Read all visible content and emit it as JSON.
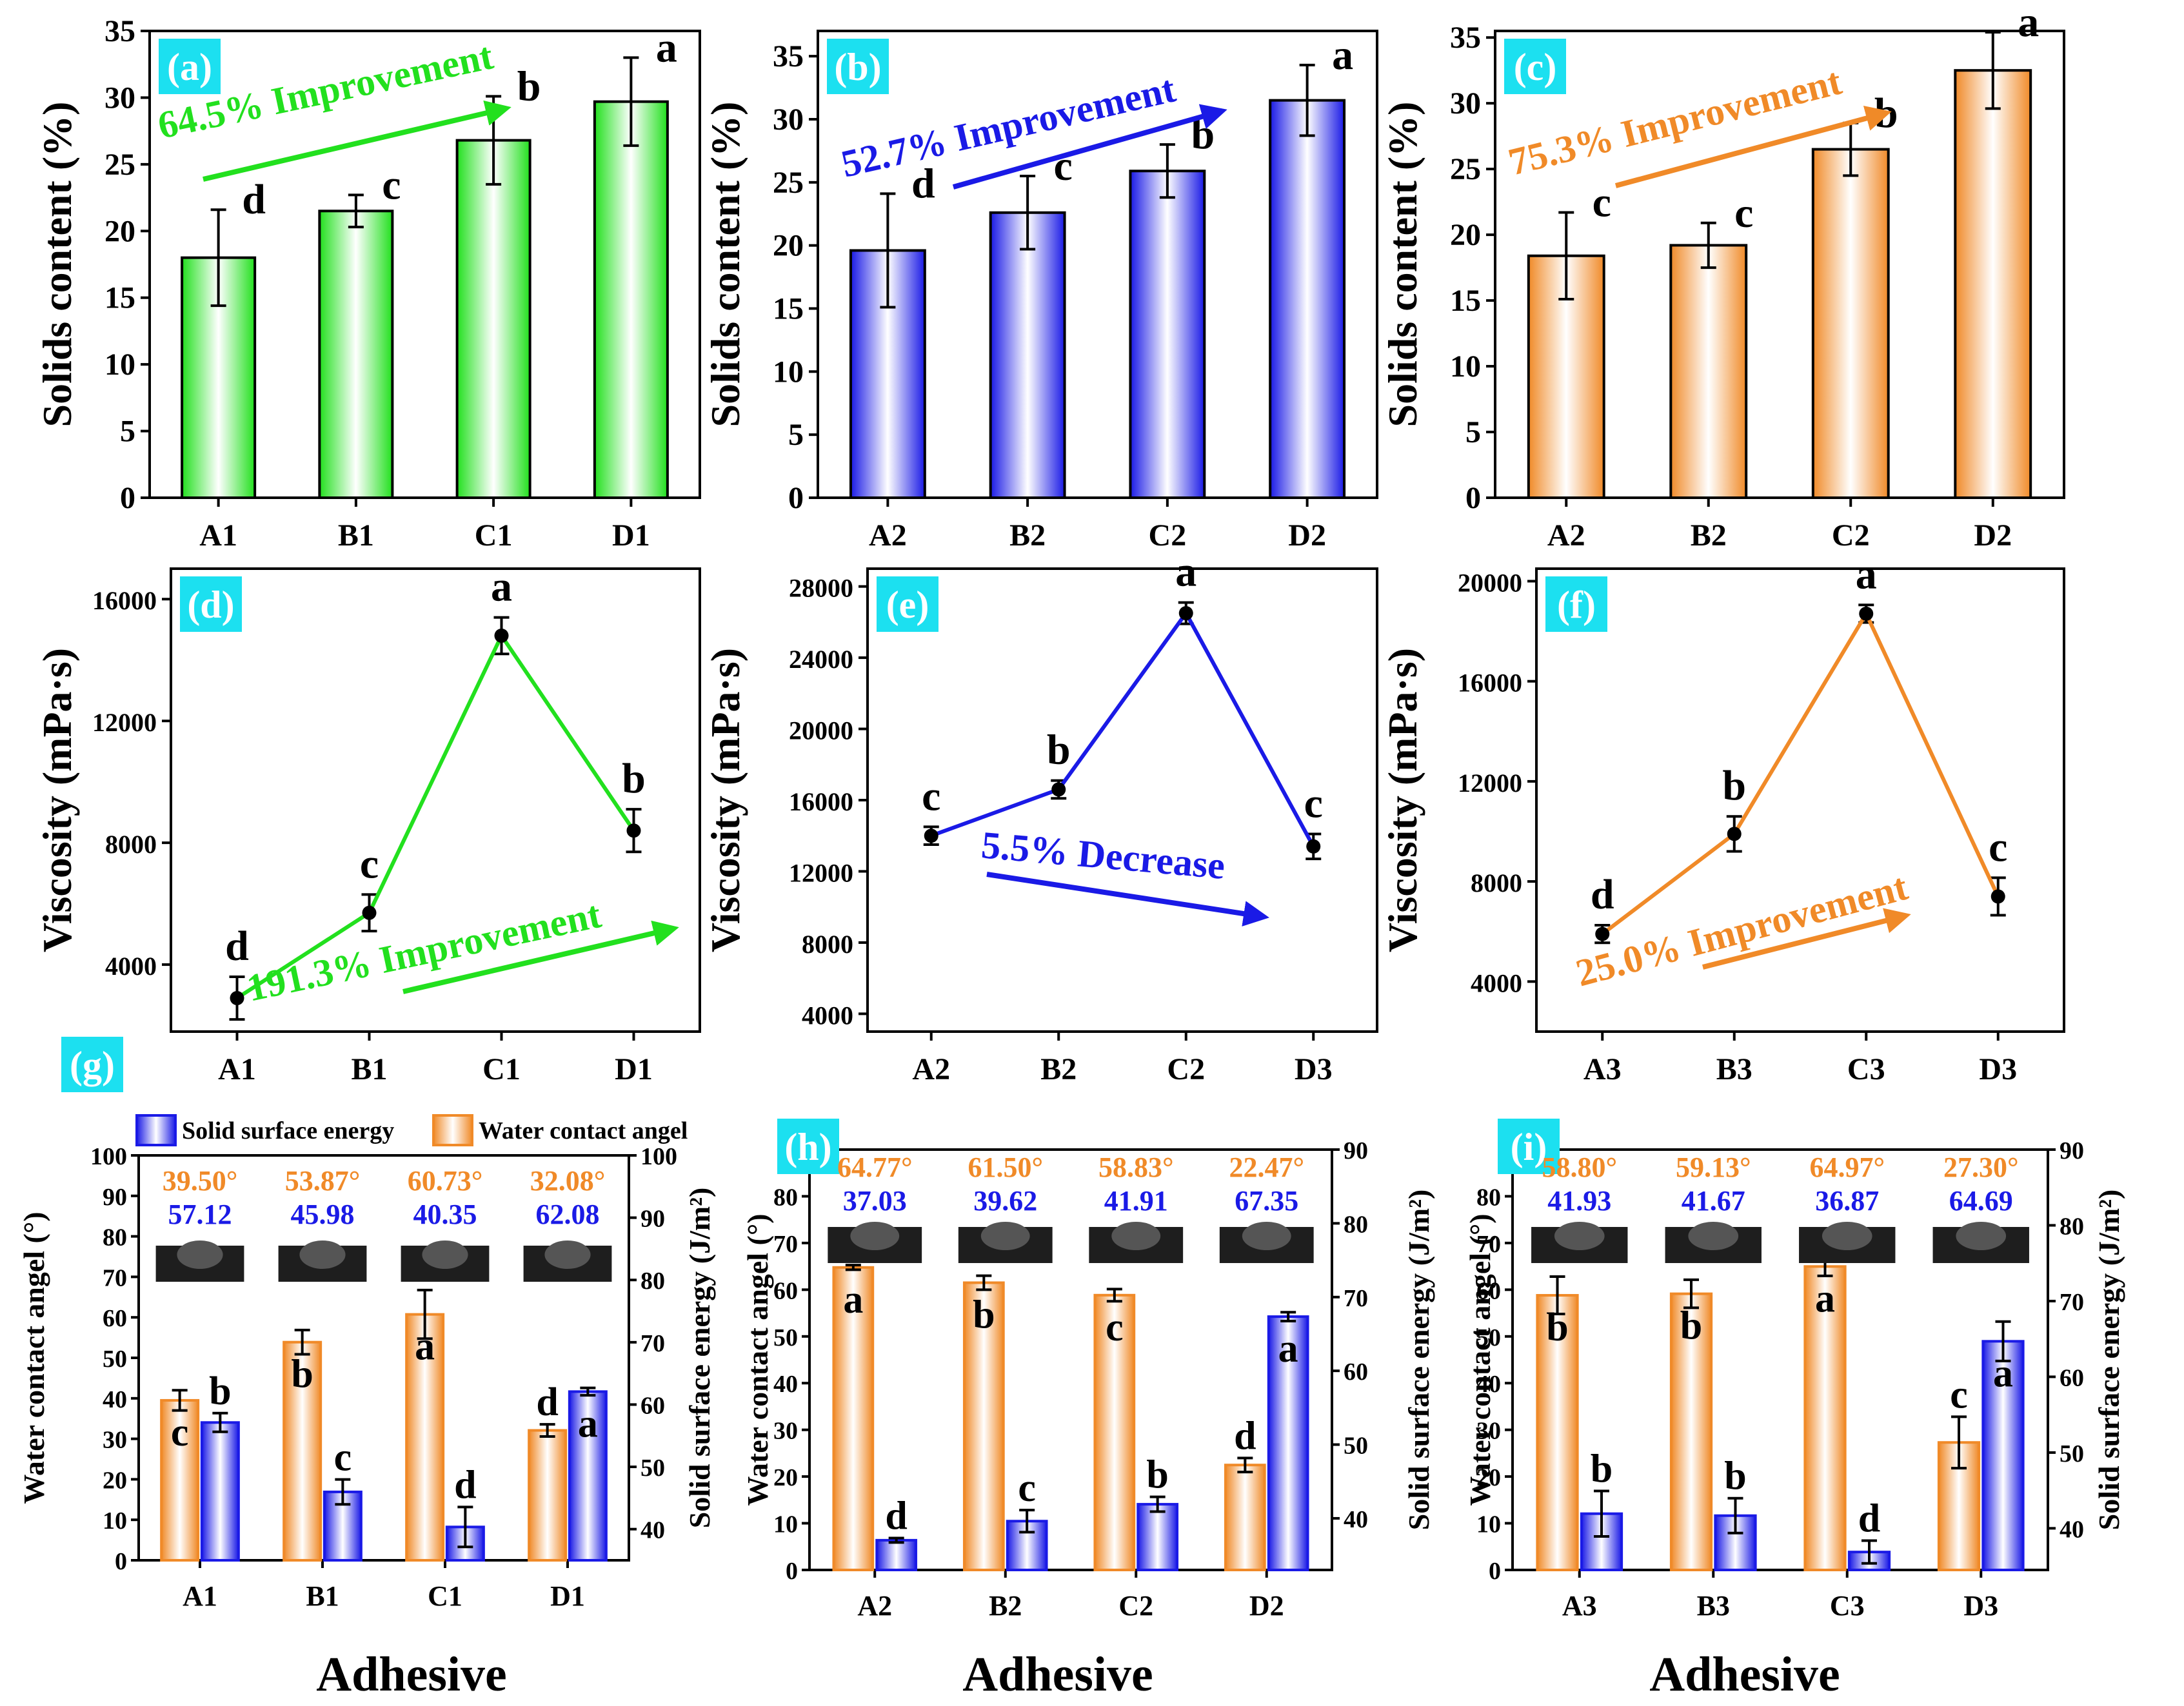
{
  "figure": {
    "adhesive_label": "Adhesive",
    "legend": {
      "solid_surface_energy": "Solid surface energy",
      "water_contact_angel": "Water contact angel"
    }
  },
  "colors": {
    "green": "#22e01e",
    "blue": "#1a1ae6",
    "orange": "#f08a28",
    "panel_label_bg": "#1ce0f0",
    "axis": "#000000"
  },
  "chart_data": [
    {
      "panel": "(a)",
      "type": "bar",
      "color": "green",
      "categories": [
        "A1",
        "B1",
        "C1",
        "D1"
      ],
      "values": [
        18.0,
        21.5,
        26.8,
        29.7
      ],
      "errors": [
        3.6,
        1.2,
        3.3,
        3.3
      ],
      "letters": [
        "d",
        "c",
        "b",
        "a"
      ],
      "ylabel": "Solids content (%)",
      "ylim": [
        0,
        35
      ],
      "yticks": [
        "0",
        "5",
        "10",
        "15",
        "20",
        "25",
        "30",
        "35"
      ],
      "annotation": "64.5% Improvement"
    },
    {
      "panel": "(b)",
      "type": "bar",
      "color": "blue",
      "categories": [
        "A2",
        "B2",
        "C2",
        "D2"
      ],
      "values": [
        19.6,
        22.6,
        25.9,
        31.5
      ],
      "errors": [
        4.5,
        2.9,
        2.1,
        2.8
      ],
      "letters": [
        "d",
        "c",
        "b",
        "a"
      ],
      "ylabel": "Solids content (%)",
      "ylim": [
        0,
        37
      ],
      "yticks": [
        "0",
        "5",
        "10",
        "15",
        "20",
        "25",
        "30",
        "35"
      ],
      "annotation": "52.7% Improvement"
    },
    {
      "panel": "(c)",
      "type": "bar",
      "color": "orange",
      "categories": [
        "A2",
        "B2",
        "C2",
        "D2"
      ],
      "values": [
        18.4,
        19.2,
        26.5,
        32.5
      ],
      "errors": [
        3.3,
        1.7,
        2.0,
        2.9
      ],
      "letters": [
        "c",
        "c",
        "b",
        "a"
      ],
      "ylabel": "Solids content (%)",
      "ylim": [
        0,
        35.5
      ],
      "yticks": [
        "0",
        "5",
        "10",
        "15",
        "20",
        "25",
        "30",
        "35"
      ],
      "annotation": "75.3% Improvement"
    },
    {
      "panel": "(d)",
      "type": "line",
      "color": "green",
      "categories": [
        "A1",
        "B1",
        "C1",
        "D1"
      ],
      "values": [
        2900,
        5700,
        14800,
        8400
      ],
      "errors": [
        700,
        600,
        600,
        700
      ],
      "letters": [
        "d",
        "c",
        "a",
        "b"
      ],
      "ylabel": "Viscosity (mPa·s)",
      "ylim": [
        1800,
        17000
      ],
      "yticks": [
        "4000",
        "8000",
        "12000",
        "16000"
      ],
      "annotation": "191.3% Improvement"
    },
    {
      "panel": "(e)",
      "type": "line",
      "color": "blue",
      "categories": [
        "A2",
        "B2",
        "C2",
        "D3"
      ],
      "values": [
        14000,
        16600,
        26500,
        13400
      ],
      "errors": [
        500,
        500,
        600,
        700
      ],
      "letters": [
        "c",
        "b",
        "a",
        "c"
      ],
      "ylabel": "Viscosity (mPa·s)",
      "ylim": [
        3000,
        29000
      ],
      "yticks": [
        "4000",
        "8000",
        "12000",
        "16000",
        "20000",
        "24000",
        "28000"
      ],
      "annotation": "5.5% Decrease"
    },
    {
      "panel": "(f)",
      "type": "line",
      "color": "orange",
      "categories": [
        "A3",
        "B3",
        "C3",
        "D3"
      ],
      "values": [
        5900,
        9900,
        18700,
        7400
      ],
      "errors": [
        350,
        700,
        350,
        750
      ],
      "letters": [
        "d",
        "b",
        "a",
        "c"
      ],
      "ylabel": "Viscosity (mPa·s)",
      "ylim": [
        2000,
        20500
      ],
      "yticks": [
        "4000",
        "8000",
        "12000",
        "16000",
        "20000"
      ],
      "annotation": "25.0% Improvement"
    },
    {
      "panel": "(g)",
      "type": "bar",
      "categories": [
        "A1",
        "B1",
        "C1",
        "D1"
      ],
      "series": [
        {
          "name": "Water contact angel",
          "axis": "left",
          "color": "orange",
          "values": [
            39.5,
            53.87,
            60.73,
            32.08
          ],
          "errors": [
            2.5,
            3.0,
            6.0,
            1.5
          ],
          "letters": [
            "c",
            "b",
            "a",
            "d"
          ]
        },
        {
          "name": "Solid surface energy",
          "axis": "right",
          "color": "blue",
          "values": [
            57.12,
            45.98,
            40.35,
            62.08
          ],
          "errors": [
            1.5,
            2.0,
            3.2,
            0.6
          ],
          "letters": [
            "b",
            "c",
            "d",
            "a"
          ]
        }
      ],
      "angle_labels": [
        "39.50°",
        "53.87°",
        "60.73°",
        "32.08°"
      ],
      "energy_labels": [
        "57.12",
        "45.98",
        "40.35",
        "62.08"
      ],
      "ylabel_left": "Water contact angel (°)",
      "ylabel_right": "Solid surface energy (J/m²)",
      "ylim_left": [
        0,
        100
      ],
      "ylim_right": [
        35,
        100
      ],
      "yticks_left": [
        "0",
        "10",
        "20",
        "30",
        "40",
        "50",
        "60",
        "70",
        "80",
        "90",
        "100"
      ],
      "yticks_right": [
        "40",
        "50",
        "60",
        "70",
        "80",
        "90",
        "100"
      ]
    },
    {
      "panel": "(h)",
      "type": "bar",
      "categories": [
        "A2",
        "B2",
        "C2",
        "D2"
      ],
      "series": [
        {
          "name": "Water contact angel",
          "axis": "left",
          "color": "orange",
          "values": [
            64.77,
            61.5,
            58.83,
            22.47
          ],
          "errors": [
            0.5,
            1.5,
            1.3,
            1.5
          ],
          "letters": [
            "a",
            "b",
            "c",
            "d"
          ]
        },
        {
          "name": "Solid surface energy",
          "axis": "right",
          "color": "blue",
          "values": [
            37.03,
            39.62,
            41.91,
            67.35
          ],
          "errors": [
            0.3,
            1.5,
            1.0,
            0.6
          ],
          "letters": [
            "d",
            "c",
            "b",
            "a"
          ]
        }
      ],
      "angle_labels": [
        "64.77°",
        "61.50°",
        "58.83°",
        "22.47°"
      ],
      "energy_labels": [
        "37.03",
        "39.62",
        "41.91",
        "67.35"
      ],
      "ylabel_left": "Water contact angel (°)",
      "ylabel_right": "Solid surface energy (J/m²)",
      "ylim_left": [
        0,
        90
      ],
      "ylim_right": [
        33,
        90
      ],
      "yticks_left": [
        "0",
        "10",
        "20",
        "30",
        "40",
        "50",
        "60",
        "70",
        "80"
      ],
      "yticks_right": [
        "40",
        "50",
        "60",
        "70",
        "80",
        "90"
      ]
    },
    {
      "panel": "(i)",
      "type": "bar",
      "categories": [
        "A3",
        "B3",
        "C3",
        "D3"
      ],
      "series": [
        {
          "name": "Water contact angel",
          "axis": "left",
          "color": "orange",
          "values": [
            58.8,
            59.13,
            64.97,
            27.3
          ],
          "errors": [
            4.0,
            3.0,
            2.0,
            5.5
          ],
          "letters": [
            "b",
            "b",
            "a",
            "c"
          ]
        },
        {
          "name": "Solid surface energy",
          "axis": "right",
          "color": "blue",
          "values": [
            41.93,
            41.67,
            36.87,
            64.69
          ],
          "errors": [
            3.0,
            2.3,
            1.5,
            2.6
          ],
          "letters": [
            "b",
            "b",
            "d",
            "a"
          ]
        }
      ],
      "angle_labels": [
        "58.80°",
        "59.13°",
        "64.97°",
        "27.30°"
      ],
      "energy_labels": [
        "41.93",
        "41.67",
        "36.87",
        "64.69"
      ],
      "ylabel_left": "Water contact angel (°)",
      "ylabel_right": "Solid surface energy (J/m²)",
      "ylim_left": [
        0,
        90
      ],
      "ylim_right": [
        34.5,
        90
      ],
      "yticks_left": [
        "0",
        "10",
        "20",
        "30",
        "40",
        "50",
        "60",
        "70",
        "80"
      ],
      "yticks_right": [
        "40",
        "50",
        "60",
        "70",
        "80",
        "90"
      ]
    }
  ]
}
